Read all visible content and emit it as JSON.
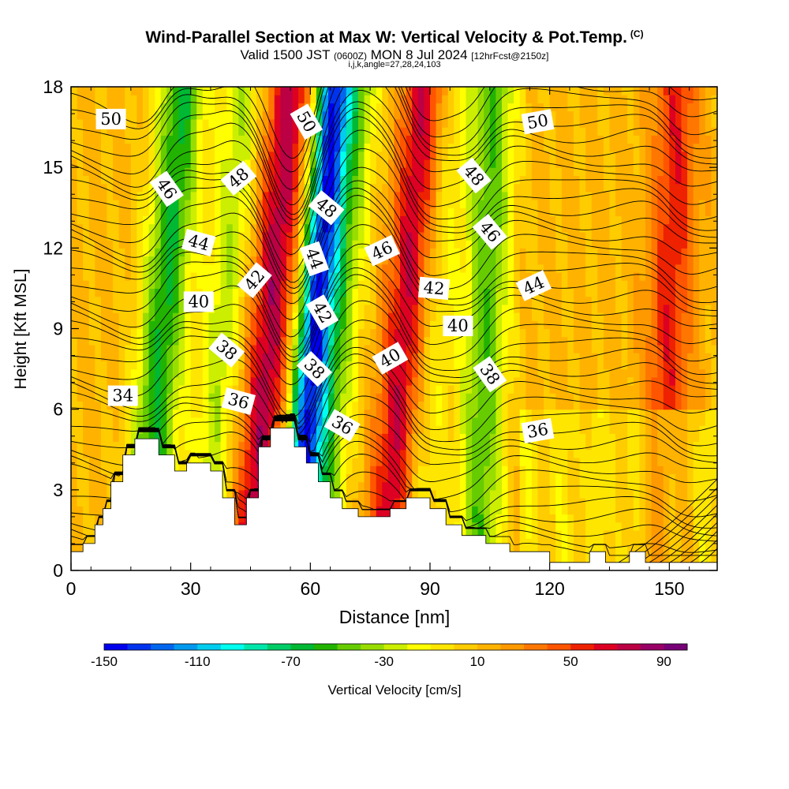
{
  "header": {
    "title": "Wind-Parallel Section at Max W: Vertical Velocity & Pot.Temp.",
    "copyright": "(C)",
    "valid_prefix": "Valid 1500 JST",
    "valid_utc": "(0600Z)",
    "valid_date": "MON 8 Jul 2024",
    "forecast": "[12hrFcst@2150z]",
    "indices": "i,j,k,angle=27,28,24,103"
  },
  "chart_data": {
    "type": "heatmap",
    "xlabel": "Distance [nm]",
    "ylabel": "Height [Kft MSL]",
    "xlim": [
      0,
      162
    ],
    "ylim": [
      0,
      18
    ],
    "x_ticks": [
      "0",
      "30",
      "60",
      "90",
      "120",
      "150"
    ],
    "y_ticks": [
      "0",
      "3",
      "6",
      "9",
      "12",
      "15",
      "18"
    ],
    "colorbar": {
      "label": "Vertical Velocity [cm/s]",
      "min": -150,
      "max": 100,
      "step": 10,
      "tick_labels": [
        "-150",
        "-110",
        "-70",
        "-30",
        "10",
        "50",
        "90"
      ],
      "colors": [
        "#0000ee",
        "#0033ee",
        "#0066ee",
        "#0099ee",
        "#00ccee",
        "#00ffee",
        "#00e6aa",
        "#00cc66",
        "#00b833",
        "#22b300",
        "#66cc00",
        "#99dd00",
        "#ccee00",
        "#ffff00",
        "#ffe600",
        "#ffcc00",
        "#ffb300",
        "#ff9900",
        "#ff7700",
        "#ff5500",
        "#ee2200",
        "#dd0022",
        "#bb0044",
        "#990066",
        "#770077"
      ]
    },
    "velocity_features": [
      {
        "x": 23,
        "w": -75
      },
      {
        "x": 38,
        "w": -40
      },
      {
        "x": 50,
        "w": 65
      },
      {
        "x": 61,
        "w": -140
      },
      {
        "x": 67,
        "w": -50
      },
      {
        "x": 84,
        "w": 60
      },
      {
        "x": 91,
        "w": -25
      },
      {
        "x": 104,
        "w": -60
      },
      {
        "x": 150,
        "w": 45
      }
    ],
    "terrain_kft": [
      [
        0,
        0.7
      ],
      [
        3,
        0.7
      ],
      [
        3,
        1.0
      ],
      [
        6,
        1.0
      ],
      [
        6,
        1.7
      ],
      [
        8,
        1.7
      ],
      [
        8,
        2.3
      ],
      [
        10,
        2.3
      ],
      [
        10,
        3.3
      ],
      [
        13,
        3.3
      ],
      [
        13,
        4.3
      ],
      [
        16,
        4.3
      ],
      [
        16,
        4.9
      ],
      [
        22,
        4.9
      ],
      [
        22,
        4.3
      ],
      [
        26,
        4.3
      ],
      [
        26,
        3.7
      ],
      [
        29,
        3.7
      ],
      [
        29,
        4.0
      ],
      [
        35,
        4.0
      ],
      [
        35,
        3.7
      ],
      [
        38,
        3.7
      ],
      [
        38,
        2.7
      ],
      [
        41,
        2.7
      ],
      [
        41,
        1.7
      ],
      [
        44,
        1.7
      ],
      [
        44,
        2.7
      ],
      [
        47,
        2.7
      ],
      [
        47,
        4.6
      ],
      [
        50,
        4.6
      ],
      [
        50,
        5.3
      ],
      [
        56,
        5.3
      ],
      [
        56,
        4.6
      ],
      [
        59,
        4.6
      ],
      [
        59,
        4.0
      ],
      [
        62,
        4.0
      ],
      [
        62,
        3.3
      ],
      [
        65,
        3.3
      ],
      [
        65,
        2.7
      ],
      [
        68,
        2.7
      ],
      [
        68,
        2.3
      ],
      [
        72,
        2.3
      ],
      [
        72,
        2.0
      ],
      [
        80,
        2.0
      ],
      [
        80,
        2.3
      ],
      [
        84,
        2.3
      ],
      [
        84,
        2.7
      ],
      [
        90,
        2.7
      ],
      [
        90,
        2.3
      ],
      [
        94,
        2.3
      ],
      [
        94,
        1.7
      ],
      [
        98,
        1.7
      ],
      [
        98,
        1.3
      ],
      [
        104,
        1.3
      ],
      [
        104,
        1.0
      ],
      [
        110,
        1.0
      ],
      [
        110,
        0.7
      ],
      [
        120,
        0.7
      ],
      [
        120,
        0.3
      ],
      [
        130,
        0.3
      ],
      [
        130,
        0.7
      ],
      [
        134,
        0.7
      ],
      [
        134,
        0.3
      ],
      [
        140,
        0.3
      ],
      [
        140,
        0.7
      ],
      [
        144,
        0.7
      ],
      [
        144,
        0.3
      ],
      [
        162,
        0.3
      ]
    ],
    "isentrope_labels": [
      {
        "text": "50",
        "x": 10,
        "y": 16.8,
        "rot": 0
      },
      {
        "text": "50",
        "x": 59,
        "y": 16.7,
        "rot": 60
      },
      {
        "text": "50",
        "x": 117,
        "y": 16.7,
        "rot": -10
      },
      {
        "text": "48",
        "x": 42,
        "y": 14.6,
        "rot": -40
      },
      {
        "text": "48",
        "x": 101,
        "y": 14.7,
        "rot": 50
      },
      {
        "text": "48",
        "x": 64,
        "y": 13.5,
        "rot": 40
      },
      {
        "text": "46",
        "x": 24,
        "y": 14.2,
        "rot": 55
      },
      {
        "text": "46",
        "x": 78,
        "y": 11.9,
        "rot": -25
      },
      {
        "text": "46",
        "x": 105,
        "y": 12.6,
        "rot": 50
      },
      {
        "text": "44",
        "x": 32,
        "y": 12.2,
        "rot": 15
      },
      {
        "text": "44",
        "x": 61,
        "y": 11.6,
        "rot": 70
      },
      {
        "text": "44",
        "x": 116,
        "y": 10.6,
        "rot": -25
      },
      {
        "text": "42",
        "x": 46,
        "y": 10.8,
        "rot": -50
      },
      {
        "text": "42",
        "x": 63,
        "y": 9.6,
        "rot": 60
      },
      {
        "text": "42",
        "x": 91,
        "y": 10.5,
        "rot": 5
      },
      {
        "text": "40",
        "x": 32,
        "y": 10.0,
        "rot": 0
      },
      {
        "text": "40",
        "x": 97,
        "y": 9.1,
        "rot": 0
      },
      {
        "text": "40",
        "x": 80,
        "y": 7.9,
        "rot": -30
      },
      {
        "text": "38",
        "x": 39,
        "y": 8.2,
        "rot": 40
      },
      {
        "text": "38",
        "x": 61,
        "y": 7.5,
        "rot": 45
      },
      {
        "text": "38",
        "x": 105,
        "y": 7.3,
        "rot": 55
      },
      {
        "text": "36",
        "x": 42,
        "y": 6.3,
        "rot": 15
      },
      {
        "text": "36",
        "x": 68,
        "y": 5.4,
        "rot": 30
      },
      {
        "text": "36",
        "x": 117,
        "y": 5.2,
        "rot": -10
      },
      {
        "text": "34",
        "x": 13,
        "y": 6.5,
        "rot": 0
      }
    ],
    "grid": false,
    "legend": "bottom"
  }
}
